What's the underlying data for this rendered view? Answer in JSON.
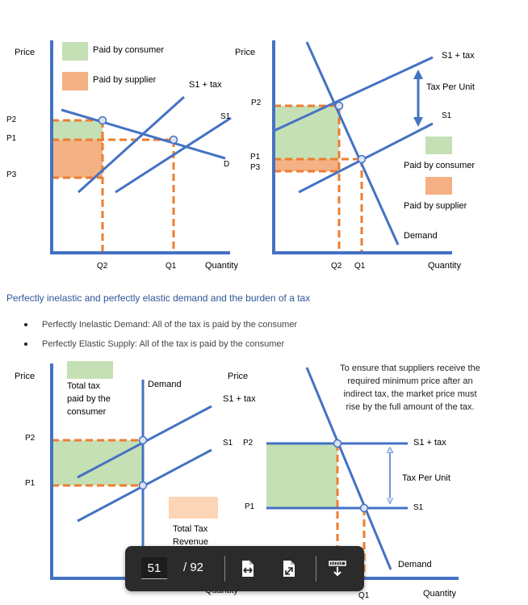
{
  "colors": {
    "axis": "#4472c4",
    "dash": "#ed7d31",
    "consumer": "#c5e0b4",
    "supplier": "#f4b183",
    "revenue": "#fbd5b5",
    "marker": "#dae3f3",
    "heading": "#2f5597"
  },
  "chart1": {
    "ylabel": "Price",
    "xlabel": "Quantity",
    "legend_consumer": "Paid by consumer",
    "legend_supplier": "Paid by supplier",
    "curve_s1tax": "S1 + tax",
    "curve_s1": "S1",
    "curve_d": "D",
    "p2": "P2",
    "p1": "P1",
    "p3": "P3",
    "q2": "Q2",
    "q1": "Q1"
  },
  "chart2": {
    "ylabel": "Price",
    "xlabel": "Quantity",
    "curve_s1tax": "S1 + tax",
    "tax_per_unit": "Tax Per Unit",
    "curve_s1": "S1",
    "p2": "P2",
    "p1": "P1",
    "p3": "P3",
    "legend_consumer": "Paid by consumer",
    "legend_supplier": "Paid by supplier",
    "curve_demand": "Demand",
    "q2": "Q2",
    "q1": "Q1"
  },
  "section": {
    "heading": "Perfectly inelastic and perfectly elastic demand and the burden of a tax",
    "bullets": [
      "Perfectly Inelastic Demand: All of the tax is paid by the consumer",
      "Perfectly Elastic Supply: All of the tax is paid by the consumer"
    ]
  },
  "chart3": {
    "ylabel": "Price",
    "xlabel": "Quantity",
    "total_tax_line1": "Total tax",
    "total_tax_line2": "paid by the",
    "total_tax_line3": "consumer",
    "curve_demand": "Demand",
    "p2": "P2",
    "p1": "P1",
    "revenue_line1": "Total Tax",
    "revenue_line2": "Revenue"
  },
  "chart4": {
    "ylabel": "Price",
    "curve_s1tax": "S1 + tax",
    "s1": "S1",
    "p2": "P2",
    "p1": "P1",
    "note": "To ensure that suppliers receive the required minimum price after an indirect tax, the market price must rise by the full amount of the tax.",
    "curve_s1tax_right": "S1 + tax",
    "tax_per_unit": "Tax Per Unit",
    "curve_s1_right": "S1",
    "curve_demand": "Demand",
    "q1": "Q1",
    "xlabel": "Quantity"
  },
  "viewer": {
    "current_page": "51",
    "total_pages": "/ 92",
    "fit_width_icon": "fit-width-icon",
    "fullscreen_icon": "fullscreen-icon",
    "download_icon": "download-icon"
  }
}
